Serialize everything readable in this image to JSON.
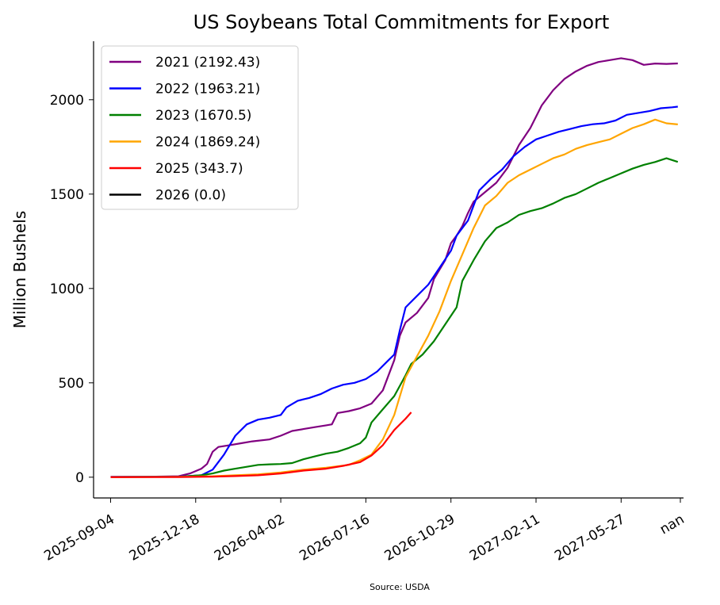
{
  "chart_data": {
    "type": "line",
    "title": "US Soybeans Total Commitments for Export",
    "xlabel": "",
    "ylabel": "Million Bushels",
    "source": "Source: USDA",
    "x_tick_labels": [
      "2025-09-04",
      "2025-12-18",
      "2026-04-02",
      "2026-07-16",
      "2026-10-29",
      "2027-02-11",
      "2027-05-27",
      "nan"
    ],
    "y_ticks": [
      0,
      500,
      1000,
      1500,
      2000
    ],
    "xlim": [
      "2025-08-14",
      "2027-08-12"
    ],
    "ylim": [
      -110,
      2310
    ],
    "legend_position": "upper-left",
    "grid": false,
    "series": [
      {
        "name": "2021 (2192.43)",
        "color": "#800080",
        "points": [
          [
            "2025-09-04",
            2
          ],
          [
            "2025-10-16",
            2
          ],
          [
            "2025-11-27",
            5
          ],
          [
            "2025-12-11",
            20
          ],
          [
            "2025-12-25",
            45
          ],
          [
            "2026-01-01",
            70
          ],
          [
            "2026-01-08",
            135
          ],
          [
            "2026-01-15",
            160
          ],
          [
            "2026-01-29",
            170
          ],
          [
            "2026-02-12",
            180
          ],
          [
            "2026-02-26",
            190
          ],
          [
            "2026-03-19",
            200
          ],
          [
            "2026-04-02",
            220
          ],
          [
            "2026-04-16",
            245
          ],
          [
            "2026-04-30",
            255
          ],
          [
            "2026-05-14",
            265
          ],
          [
            "2026-05-28",
            275
          ],
          [
            "2026-06-04",
            280
          ],
          [
            "2026-06-11",
            340
          ],
          [
            "2026-06-25",
            350
          ],
          [
            "2026-07-09",
            365
          ],
          [
            "2026-07-23",
            390
          ],
          [
            "2026-08-06",
            460
          ],
          [
            "2026-08-20",
            620
          ],
          [
            "2026-08-27",
            750
          ],
          [
            "2026-09-03",
            820
          ],
          [
            "2026-09-17",
            870
          ],
          [
            "2026-10-01",
            950
          ],
          [
            "2026-10-08",
            1050
          ],
          [
            "2026-10-22",
            1150
          ],
          [
            "2026-10-29",
            1240
          ],
          [
            "2026-11-05",
            1280
          ],
          [
            "2026-11-12",
            1330
          ],
          [
            "2026-11-19",
            1400
          ],
          [
            "2026-11-26",
            1460
          ],
          [
            "2026-12-10",
            1510
          ],
          [
            "2026-12-24",
            1560
          ],
          [
            "2027-01-07",
            1640
          ],
          [
            "2027-01-21",
            1760
          ],
          [
            "2027-02-04",
            1850
          ],
          [
            "2027-02-18",
            1970
          ],
          [
            "2027-03-04",
            2050
          ],
          [
            "2027-03-18",
            2110
          ],
          [
            "2027-04-01",
            2150
          ],
          [
            "2027-04-15",
            2180
          ],
          [
            "2027-04-29",
            2200
          ],
          [
            "2027-05-13",
            2210
          ],
          [
            "2027-05-27",
            2220
          ],
          [
            "2027-06-10",
            2210
          ],
          [
            "2027-06-24",
            2185
          ],
          [
            "2027-07-08",
            2192
          ],
          [
            "2027-07-22",
            2190
          ],
          [
            "2027-08-05",
            2192.43
          ]
        ]
      },
      {
        "name": "2022 (1963.21)",
        "color": "#0000ff",
        "points": [
          [
            "2025-09-04",
            2
          ],
          [
            "2025-11-27",
            3
          ],
          [
            "2025-12-25",
            10
          ],
          [
            "2026-01-08",
            40
          ],
          [
            "2026-01-22",
            120
          ],
          [
            "2026-02-05",
            220
          ],
          [
            "2026-02-19",
            280
          ],
          [
            "2026-03-05",
            305
          ],
          [
            "2026-03-19",
            315
          ],
          [
            "2026-04-02",
            330
          ],
          [
            "2026-04-09",
            370
          ],
          [
            "2026-04-23",
            405
          ],
          [
            "2026-05-07",
            420
          ],
          [
            "2026-05-21",
            440
          ],
          [
            "2026-06-04",
            470
          ],
          [
            "2026-06-18",
            490
          ],
          [
            "2026-07-02",
            500
          ],
          [
            "2026-07-16",
            520
          ],
          [
            "2026-07-30",
            560
          ],
          [
            "2026-08-13",
            620
          ],
          [
            "2026-08-20",
            650
          ],
          [
            "2026-08-27",
            780
          ],
          [
            "2026-09-03",
            900
          ],
          [
            "2026-09-17",
            960
          ],
          [
            "2026-10-01",
            1020
          ],
          [
            "2026-10-15",
            1110
          ],
          [
            "2026-10-29",
            1200
          ],
          [
            "2026-11-05",
            1280
          ],
          [
            "2026-11-19",
            1360
          ],
          [
            "2026-12-03",
            1520
          ],
          [
            "2026-12-17",
            1580
          ],
          [
            "2026-12-31",
            1630
          ],
          [
            "2027-01-14",
            1700
          ],
          [
            "2027-01-28",
            1750
          ],
          [
            "2027-02-11",
            1790
          ],
          [
            "2027-02-25",
            1810
          ],
          [
            "2027-03-11",
            1830
          ],
          [
            "2027-03-25",
            1845
          ],
          [
            "2027-04-08",
            1860
          ],
          [
            "2027-04-22",
            1870
          ],
          [
            "2027-05-06",
            1875
          ],
          [
            "2027-05-20",
            1890
          ],
          [
            "2027-06-03",
            1920
          ],
          [
            "2027-06-17",
            1930
          ],
          [
            "2027-07-01",
            1940
          ],
          [
            "2027-07-15",
            1955
          ],
          [
            "2027-07-29",
            1960
          ],
          [
            "2027-08-05",
            1963.21
          ]
        ]
      },
      {
        "name": "2023 (1670.5)",
        "color": "#008000",
        "points": [
          [
            "2025-09-04",
            1
          ],
          [
            "2025-11-27",
            2
          ],
          [
            "2025-12-25",
            10
          ],
          [
            "2026-01-08",
            20
          ],
          [
            "2026-01-22",
            35
          ],
          [
            "2026-02-05",
            45
          ],
          [
            "2026-02-19",
            55
          ],
          [
            "2026-03-05",
            65
          ],
          [
            "2026-03-19",
            68
          ],
          [
            "2026-04-02",
            70
          ],
          [
            "2026-04-16",
            75
          ],
          [
            "2026-04-30",
            95
          ],
          [
            "2026-05-14",
            110
          ],
          [
            "2026-05-28",
            125
          ],
          [
            "2026-06-11",
            135
          ],
          [
            "2026-06-25",
            155
          ],
          [
            "2026-07-09",
            180
          ],
          [
            "2026-07-16",
            210
          ],
          [
            "2026-07-23",
            290
          ],
          [
            "2026-08-06",
            360
          ],
          [
            "2026-08-20",
            430
          ],
          [
            "2026-09-03",
            540
          ],
          [
            "2026-09-10",
            600
          ],
          [
            "2026-09-24",
            650
          ],
          [
            "2026-10-08",
            720
          ],
          [
            "2026-10-22",
            810
          ],
          [
            "2026-11-05",
            900
          ],
          [
            "2026-11-12",
            1040
          ],
          [
            "2026-11-26",
            1150
          ],
          [
            "2026-12-10",
            1250
          ],
          [
            "2026-12-24",
            1320
          ],
          [
            "2027-01-07",
            1350
          ],
          [
            "2027-01-21",
            1390
          ],
          [
            "2027-02-04",
            1410
          ],
          [
            "2027-02-18",
            1425
          ],
          [
            "2027-03-04",
            1450
          ],
          [
            "2027-03-18",
            1480
          ],
          [
            "2027-04-01",
            1500
          ],
          [
            "2027-04-15",
            1530
          ],
          [
            "2027-04-29",
            1560
          ],
          [
            "2027-05-13",
            1585
          ],
          [
            "2027-05-27",
            1610
          ],
          [
            "2027-06-10",
            1635
          ],
          [
            "2027-06-24",
            1655
          ],
          [
            "2027-07-08",
            1670
          ],
          [
            "2027-07-22",
            1690
          ],
          [
            "2027-08-05",
            1670.5
          ]
        ]
      },
      {
        "name": "2024 (1869.24)",
        "color": "#ffa500",
        "points": [
          [
            "2025-09-04",
            1
          ],
          [
            "2025-11-27",
            2
          ],
          [
            "2026-01-08",
            5
          ],
          [
            "2026-02-05",
            10
          ],
          [
            "2026-03-05",
            15
          ],
          [
            "2026-04-02",
            25
          ],
          [
            "2026-04-30",
            40
          ],
          [
            "2026-05-28",
            50
          ],
          [
            "2026-06-25",
            65
          ],
          [
            "2026-07-09",
            90
          ],
          [
            "2026-07-23",
            120
          ],
          [
            "2026-08-06",
            200
          ],
          [
            "2026-08-20",
            330
          ],
          [
            "2026-09-03",
            530
          ],
          [
            "2026-09-17",
            640
          ],
          [
            "2026-10-01",
            750
          ],
          [
            "2026-10-15",
            880
          ],
          [
            "2026-10-29",
            1040
          ],
          [
            "2026-11-12",
            1180
          ],
          [
            "2026-11-26",
            1320
          ],
          [
            "2026-12-10",
            1440
          ],
          [
            "2026-12-24",
            1490
          ],
          [
            "2027-01-07",
            1560
          ],
          [
            "2027-01-21",
            1600
          ],
          [
            "2027-02-04",
            1630
          ],
          [
            "2027-02-18",
            1660
          ],
          [
            "2027-03-04",
            1690
          ],
          [
            "2027-03-18",
            1710
          ],
          [
            "2027-04-01",
            1740
          ],
          [
            "2027-04-15",
            1760
          ],
          [
            "2027-04-29",
            1775
          ],
          [
            "2027-05-13",
            1790
          ],
          [
            "2027-05-27",
            1820
          ],
          [
            "2027-06-10",
            1850
          ],
          [
            "2027-06-24",
            1870
          ],
          [
            "2027-07-08",
            1895
          ],
          [
            "2027-07-22",
            1875
          ],
          [
            "2027-08-05",
            1869.24
          ]
        ]
      },
      {
        "name": "2025 (343.7)",
        "color": "#ff0000",
        "points": [
          [
            "2025-09-04",
            0
          ],
          [
            "2025-11-27",
            1
          ],
          [
            "2026-01-08",
            3
          ],
          [
            "2026-02-05",
            6
          ],
          [
            "2026-03-05",
            10
          ],
          [
            "2026-04-02",
            20
          ],
          [
            "2026-04-30",
            35
          ],
          [
            "2026-05-28",
            45
          ],
          [
            "2026-06-18",
            60
          ],
          [
            "2026-07-09",
            80
          ],
          [
            "2026-07-23",
            115
          ],
          [
            "2026-08-06",
            170
          ],
          [
            "2026-08-20",
            250
          ],
          [
            "2026-09-03",
            310
          ],
          [
            "2026-09-10",
            343.7
          ]
        ]
      },
      {
        "name": "2026 (0.0)",
        "color": "#000000",
        "points": []
      }
    ]
  }
}
